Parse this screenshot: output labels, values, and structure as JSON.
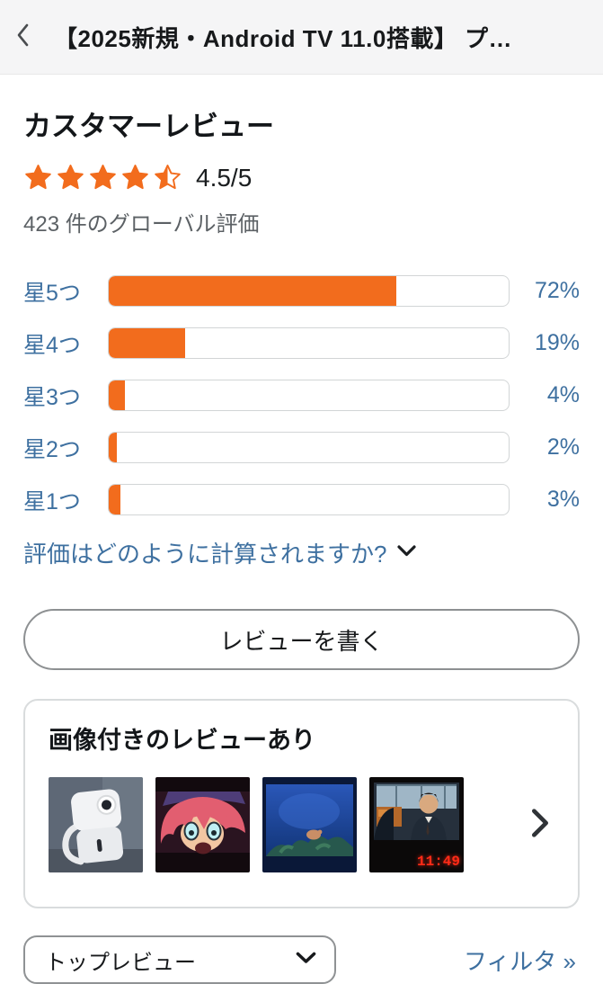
{
  "colors": {
    "accent_orange": "#F26C1D",
    "link_blue": "#3E70A0",
    "header_bg": "#F5F5F6",
    "bar_border_gray": "#D2D5D6",
    "text_dark": "#141719",
    "text_gray": "#5C6165",
    "clock_red": "#FF2B17"
  },
  "header": {
    "back_icon": "chevron-left",
    "title": "【2025新規・Android TV 11.0搭載】 プ…"
  },
  "summary": {
    "heading": "カスタマーレビュー",
    "rating_value": 4.5,
    "rating_max": 5,
    "stars_full": 4,
    "stars_half": 1,
    "rating_label": "4.5/5",
    "global_ratings": "423 件のグローバル評価"
  },
  "chart_data": {
    "type": "bar",
    "categories": [
      "星5つ",
      "星4つ",
      "星3つ",
      "星2つ",
      "星1つ"
    ],
    "values": [
      72,
      19,
      4,
      2,
      3
    ],
    "value_labels": [
      "72%",
      "19%",
      "4%",
      "2%",
      "3%"
    ],
    "unit": "%",
    "xlim": [
      0,
      100
    ],
    "bar_color": "#F26C1D"
  },
  "how_calculated": {
    "label": "評価はどのように計算されますか?",
    "icon": "chevron-down"
  },
  "write_review": {
    "label": "レビューを書く"
  },
  "images_card": {
    "heading": "画像付きのレビューあり",
    "thumbnails": [
      "projector-device-photo",
      "anime-scene-projection-photo",
      "underwater-scene-projection-photo",
      "tv-drama-projection-photo"
    ],
    "clock_text": "11:49",
    "more_icon": "chevron-right"
  },
  "footer_controls": {
    "sort_selected": "トップレビュー",
    "sort_icon": "chevron-down",
    "filter_link": "フィルタ »"
  }
}
